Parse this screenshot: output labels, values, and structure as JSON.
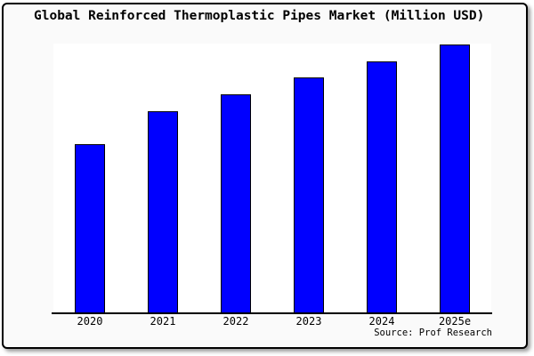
{
  "chart_data": {
    "type": "bar",
    "title": "Global Reinforced Thermoplastic Pipes Market (Million USD)",
    "categories": [
      "2020",
      "2021",
      "2022",
      "2023",
      "2024",
      "2025e"
    ],
    "values": [
      190,
      227,
      246,
      265,
      283,
      302
    ],
    "xlabel": "",
    "ylabel": "",
    "ylim": [
      0,
      303
    ],
    "value_note": "no y-axis shown; values estimated as relative heights",
    "grid": false,
    "legend": "none",
    "source_note": "Source: Prof Research",
    "bar_color": "#0000ff",
    "bar_edge_color": "#000000",
    "plot_bg_color": "#ffffff",
    "outer_bg_color": "#fafafa",
    "frame_border_color": "#000000"
  }
}
